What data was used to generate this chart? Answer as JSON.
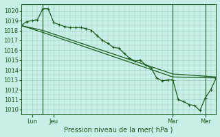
{
  "bg_color": "#c8eee8",
  "grid_color": "#9ecfbe",
  "line_color": "#1a5c1a",
  "xlabel": "Pression niveau de la mer( hPa )",
  "ylim": [
    1009.5,
    1020.7
  ],
  "yticks": [
    1010,
    1011,
    1012,
    1013,
    1014,
    1015,
    1016,
    1017,
    1018,
    1019,
    1020
  ],
  "xlim": [
    0,
    108
  ],
  "xtick_positions": [
    6,
    18,
    84,
    102
  ],
  "xtick_labels": [
    "Lun",
    "Jeu",
    "Mar",
    "Mer"
  ],
  "vline_positions": [
    12,
    84,
    102
  ],
  "series1_x": [
    0,
    3,
    6,
    9,
    12,
    15,
    18,
    21,
    24,
    27,
    30,
    33,
    36,
    39,
    42,
    45,
    48,
    51,
    54,
    57,
    60,
    63,
    66,
    69,
    72,
    75,
    78,
    81,
    84,
    87,
    90,
    93,
    96,
    99,
    102,
    105,
    108
  ],
  "series1_y": [
    1018.5,
    1018.9,
    1019.0,
    1019.1,
    1020.2,
    1020.2,
    1018.8,
    1018.6,
    1018.4,
    1018.3,
    1018.3,
    1018.3,
    1018.2,
    1018.0,
    1017.5,
    1017.0,
    1016.7,
    1016.3,
    1016.2,
    1015.7,
    1015.2,
    1014.9,
    1015.0,
    1014.5,
    1014.2,
    1013.2,
    1012.9,
    1013.0,
    1013.0,
    1011.0,
    1010.8,
    1010.5,
    1010.4,
    1009.9,
    1011.2,
    1012.0,
    1013.2
  ],
  "series2_x": [
    0,
    12,
    84,
    108
  ],
  "series2_y": [
    1018.5,
    1018.0,
    1013.6,
    1013.3
  ],
  "series3_x": [
    0,
    12,
    84,
    108
  ],
  "series3_y": [
    1018.5,
    1017.8,
    1013.3,
    1013.2
  ]
}
